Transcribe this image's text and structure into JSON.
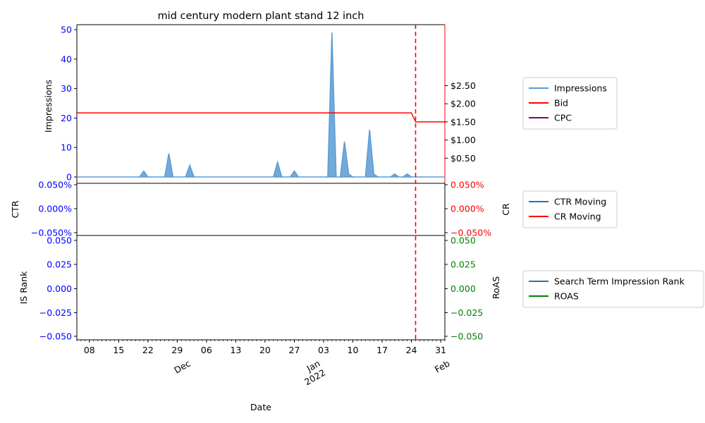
{
  "chart_data": [
    {
      "type": "area",
      "title": "mid century modern plant stand 12 inch",
      "ylabel": "Impressions",
      "ylim": [
        0,
        51.5
      ],
      "yticks": [
        "0",
        "10",
        "20",
        "30",
        "40",
        "50"
      ],
      "right_ylim": [
        0,
        2.95
      ],
      "right_yticks": [
        "$0.50",
        "$1.00",
        "$1.50",
        "$2.00",
        "$2.50"
      ],
      "x_start": "2021-11-05",
      "x_end": "2022-02-01",
      "series": [
        {
          "name": "Impressions",
          "color": "#5b9bd5",
          "values": [
            [
              "2021-11-05",
              0
            ],
            [
              "2021-11-20",
              0
            ],
            [
              "2021-11-21",
              2
            ],
            [
              "2021-11-22",
              0
            ],
            [
              "2021-11-26",
              0
            ],
            [
              "2021-11-27",
              8
            ],
            [
              "2021-11-28",
              0
            ],
            [
              "2021-12-01",
              0
            ],
            [
              "2021-12-02",
              4
            ],
            [
              "2021-12-03",
              0
            ],
            [
              "2021-12-22",
              0
            ],
            [
              "2021-12-23",
              5
            ],
            [
              "2021-12-24",
              0
            ],
            [
              "2021-12-26",
              0
            ],
            [
              "2021-12-27",
              2
            ],
            [
              "2021-12-28",
              0
            ],
            [
              "2022-01-04",
              0
            ],
            [
              "2022-01-05",
              49
            ],
            [
              "2022-01-06",
              0
            ],
            [
              "2022-01-07",
              0
            ],
            [
              "2022-01-08",
              12
            ],
            [
              "2022-01-09",
              1
            ],
            [
              "2022-01-10",
              0
            ],
            [
              "2022-01-13",
              0
            ],
            [
              "2022-01-14",
              16
            ],
            [
              "2022-01-15",
              1
            ],
            [
              "2022-01-16",
              0
            ],
            [
              "2022-01-19",
              0
            ],
            [
              "2022-01-20",
              1
            ],
            [
              "2022-01-21",
              0
            ],
            [
              "2022-01-22",
              0
            ],
            [
              "2022-01-23",
              1
            ],
            [
              "2022-01-24",
              0
            ],
            [
              "2022-02-01",
              0
            ]
          ]
        },
        {
          "name": "Bid",
          "color": "#ff0000",
          "axis": "right",
          "values": [
            [
              "2021-11-05",
              1.75
            ],
            [
              "2022-01-24",
              1.75
            ],
            [
              "2022-01-25",
              1.5
            ],
            [
              "2022-02-01",
              1.5
            ]
          ]
        },
        {
          "name": "CPC",
          "color": "#800080",
          "axis": "right",
          "values": []
        }
      ]
    },
    {
      "type": "line",
      "ylabel": "CTR",
      "right_ylabel": "CR",
      "yticks": [
        "0.050%",
        "0.000%",
        "−0.050%"
      ],
      "right_yticks": [
        "0.050%",
        "0.000%",
        "−0.050%"
      ],
      "series": [
        {
          "name": "CTR Moving",
          "color": "#1f77b4",
          "values": []
        },
        {
          "name": "CR Moving",
          "color": "#ff0000",
          "values": []
        }
      ]
    },
    {
      "type": "line",
      "ylabel": "IS Rank",
      "right_ylabel": "RoAS",
      "xlabel": "Date",
      "yticks": [
        "0.050",
        "0.025",
        "0.000",
        "−0.025",
        "−0.050"
      ],
      "right_yticks": [
        "0.050",
        "0.025",
        "0.000",
        "−0.025",
        "−0.050"
      ],
      "series": [
        {
          "name": "Search Term Impression Rank",
          "color": "#1f77b4",
          "values": []
        },
        {
          "name": "ROAS",
          "color": "#008000",
          "values": []
        }
      ],
      "xticks": [
        {
          "date": "2021-11-08",
          "label": "08"
        },
        {
          "date": "2021-11-15",
          "label": "15"
        },
        {
          "date": "2021-11-22",
          "label": "22"
        },
        {
          "date": "2021-11-29",
          "label": "29"
        },
        {
          "date": "2021-12-06",
          "label": "06"
        },
        {
          "date": "2021-12-13",
          "label": "13"
        },
        {
          "date": "2021-12-20",
          "label": "20"
        },
        {
          "date": "2021-12-27",
          "label": "27"
        },
        {
          "date": "2022-01-03",
          "label": "03"
        },
        {
          "date": "2022-01-10",
          "label": "10"
        },
        {
          "date": "2022-01-17",
          "label": "17"
        },
        {
          "date": "2022-01-24",
          "label": "24"
        },
        {
          "date": "2022-01-31",
          "label": "31"
        }
      ],
      "month_labels": [
        {
          "date": "2021-12-01",
          "label": "Dec"
        },
        {
          "date": "2022-01-01",
          "label": "Jan\n2022"
        },
        {
          "date": "2022-02-01",
          "label": "Feb"
        }
      ]
    }
  ],
  "vline_date": "2022-01-25",
  "vline_color": "#ff0000",
  "left_tick_color": "#0000ff",
  "right_tick_colors": [
    "#000000",
    "#ff0000",
    "#008000"
  ]
}
